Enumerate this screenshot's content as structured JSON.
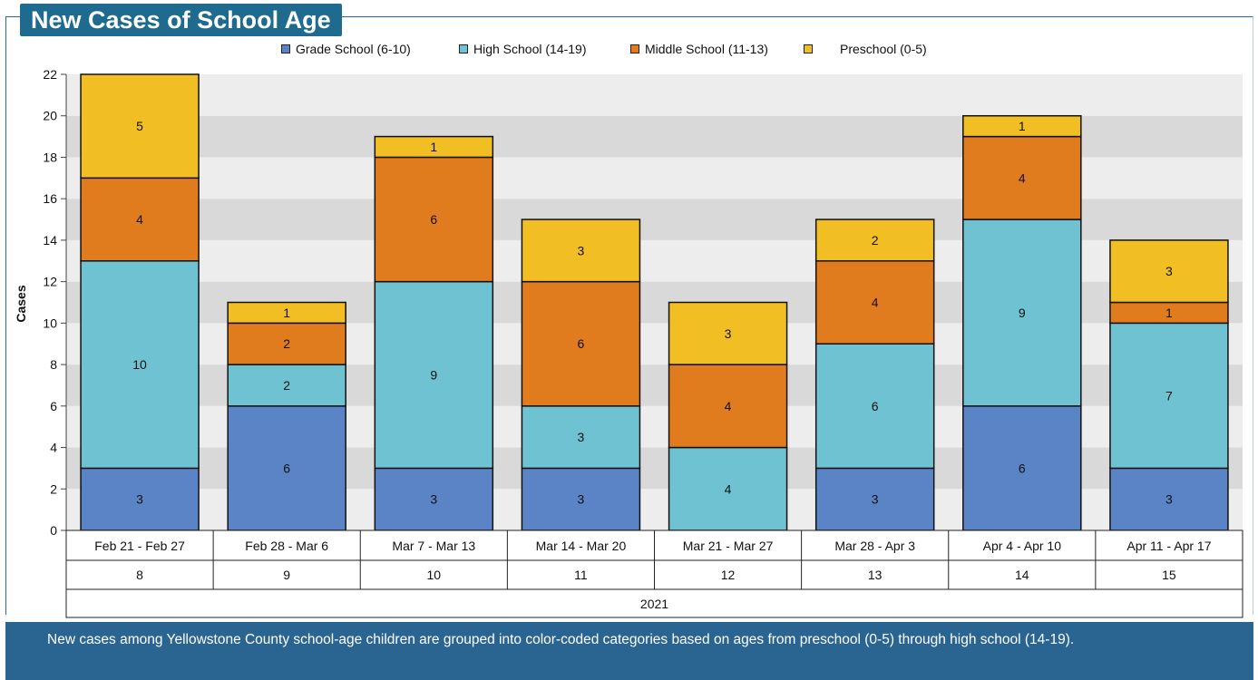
{
  "header": {
    "title": "New Cases of School Age"
  },
  "legend": [
    {
      "label": "Grade School (6-10)",
      "color": "#5b84c7"
    },
    {
      "label": "High School (14-19)",
      "color": "#6fc2d2"
    },
    {
      "label": "Middle School (11-13)",
      "color": "#e07b1e"
    },
    {
      "label": "Preschool (0-5)",
      "color": "#f1be23"
    }
  ],
  "chart_data": {
    "type": "bar",
    "stacked": true,
    "ylabel": "Cases",
    "ylim": [
      0,
      22
    ],
    "yticks": [
      0,
      2,
      4,
      6,
      8,
      10,
      12,
      14,
      16,
      18,
      20,
      22
    ],
    "categories": [
      "Feb 21 - Feb 27",
      "Feb 28 - Mar 6",
      "Mar 7 - Mar 13",
      "Mar 14 - Mar 20",
      "Mar 21 - Mar 27",
      "Mar 28 - Apr 3",
      "Apr 4 - Apr 10",
      "Apr 11 - Apr 17"
    ],
    "weeks": [
      "8",
      "9",
      "10",
      "11",
      "12",
      "13",
      "14",
      "15"
    ],
    "year": "2021",
    "series": [
      {
        "name": "Grade School (6-10)",
        "color": "#5b84c7",
        "values": [
          3,
          6,
          3,
          3,
          0,
          3,
          6,
          3
        ]
      },
      {
        "name": "High School (14-19)",
        "color": "#6fc2d2",
        "values": [
          10,
          2,
          9,
          3,
          4,
          6,
          9,
          7
        ]
      },
      {
        "name": "Middle School (11-13)",
        "color": "#e07b1e",
        "values": [
          4,
          2,
          6,
          6,
          4,
          4,
          4,
          1
        ]
      },
      {
        "name": "Preschool (0-5)",
        "color": "#f1be23",
        "values": [
          5,
          1,
          1,
          3,
          3,
          2,
          1,
          3
        ]
      }
    ]
  },
  "footer": {
    "description": "New cases among Yellowstone County school-age children are grouped into color-coded categories based on ages from preschool (0-5) through high school (14-19)."
  }
}
